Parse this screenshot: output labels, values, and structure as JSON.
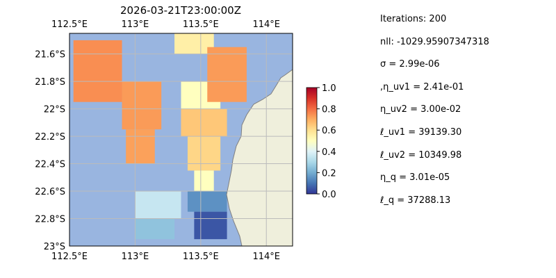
{
  "chart_data": {
    "type": "heatmap",
    "title": "2026-03-21T23:00:00Z",
    "x_ticks_top": [
      "112.5°E",
      "113°E",
      "113.5°E",
      "114°E"
    ],
    "x_ticks_bottom": [
      "112.5°E",
      "113°E",
      "113.5°E",
      "114°E"
    ],
    "x_tick_values": [
      112.5,
      113.0,
      113.5,
      114.0
    ],
    "y_ticks": [
      "21.6°S",
      "21.8°S",
      "22°S",
      "22.2°S",
      "22.4°S",
      "22.6°S",
      "22.8°S",
      "23°S"
    ],
    "y_tick_values": [
      -21.6,
      -21.8,
      -22.0,
      -22.2,
      -22.4,
      -22.6,
      -22.8,
      -23.0
    ],
    "xlim": [
      112.5,
      114.2
    ],
    "ylim": [
      -23.0,
      -21.45
    ],
    "grid": true,
    "colorbar": {
      "ticks": [
        "0.0",
        "0.2",
        "0.4",
        "0.6",
        "0.8",
        "1.0"
      ],
      "tick_values": [
        0.0,
        0.2,
        0.4,
        0.6,
        0.8,
        1.0
      ],
      "range": [
        0.0,
        1.0
      ],
      "colormap": "RdYlBu_r"
    },
    "colors": {
      "ocean": "#99b5e0",
      "land": "#efefdc",
      "coast": "#808080",
      "grid": "#bbbbbb"
    },
    "regions": [
      {
        "lon": [
          112.53,
          112.9
        ],
        "lat": [
          -21.5,
          -21.95
        ],
        "value": 0.75
      },
      {
        "lon": [
          112.9,
          113.2
        ],
        "lat": [
          -21.8,
          -22.15
        ],
        "value": 0.73
      },
      {
        "lon": [
          112.93,
          113.15
        ],
        "lat": [
          -22.15,
          -22.4
        ],
        "value": 0.72
      },
      {
        "lon": [
          113.3,
          113.6
        ],
        "lat": [
          -21.45,
          -21.6
        ],
        "value": 0.55
      },
      {
        "lon": [
          113.35,
          113.65
        ],
        "lat": [
          -21.8,
          -22.0
        ],
        "value": 0.5
      },
      {
        "lon": [
          113.35,
          113.7
        ],
        "lat": [
          -22.0,
          -22.2
        ],
        "value": 0.65
      },
      {
        "lon": [
          113.4,
          113.65
        ],
        "lat": [
          -22.2,
          -22.45
        ],
        "value": 0.62
      },
      {
        "lon": [
          113.55,
          113.85
        ],
        "lat": [
          -21.55,
          -21.95
        ],
        "value": 0.73
      },
      {
        "lon": [
          113.45,
          113.6
        ],
        "lat": [
          -22.45,
          -22.6
        ],
        "value": 0.5
      },
      {
        "lon": [
          113.4,
          113.7
        ],
        "lat": [
          -22.6,
          -22.75
        ],
        "value": 0.15
      },
      {
        "lon": [
          113.45,
          113.7
        ],
        "lat": [
          -22.75,
          -22.95
        ],
        "value": 0.05
      },
      {
        "lon": [
          113.0,
          113.35
        ],
        "lat": [
          -22.6,
          -22.8
        ],
        "value": 0.35
      },
      {
        "lon": [
          113.0,
          113.3
        ],
        "lat": [
          -22.8,
          -22.95
        ],
        "value": 0.25
      }
    ]
  },
  "stats": {
    "iterations": "Iterations: 200",
    "nll": "nll: -1029.95907347318",
    "sigma": "σ = 2.99e-06",
    "eta_uv1": ",η_uv1 = 2.41e-01",
    "eta_uv2": "η_uv2 = 3.00e-02",
    "ell_uv1": "ℓ_uv1 = 39139.30",
    "ell_uv2": "ℓ_uv2 = 10349.98",
    "eta_q": "η_q = 3.01e-05",
    "ell_q": "ℓ_q = 37288.13"
  }
}
